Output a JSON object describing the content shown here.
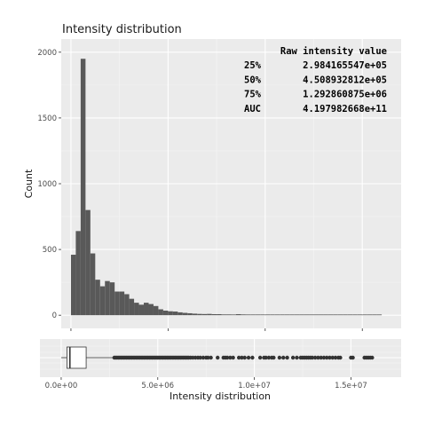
{
  "chart_data": [
    {
      "type": "bar",
      "title": "Intensity distribution",
      "xlabel": "",
      "ylabel": "Count",
      "bin_width": 250000,
      "bins_start": 0,
      "counts": [
        460,
        640,
        1950,
        800,
        470,
        270,
        220,
        260,
        250,
        180,
        180,
        160,
        125,
        95,
        80,
        95,
        85,
        70,
        45,
        35,
        30,
        28,
        22,
        18,
        15,
        12,
        10,
        9,
        10,
        8,
        8,
        6,
        6,
        5,
        8,
        6,
        4,
        3,
        3,
        4,
        3,
        2,
        3,
        2,
        2,
        2,
        2,
        2,
        1,
        1,
        2,
        1,
        1,
        2,
        1,
        1,
        1,
        1,
        2,
        1,
        1,
        1,
        1,
        1
      ],
      "xlim": [
        -500000,
        17000000
      ],
      "ylim": [
        -100,
        2100
      ],
      "yticks": [
        0,
        500,
        1000,
        1500,
        2000
      ],
      "yticklabels": [
        "0",
        "500",
        "1000",
        "1500",
        "2000"
      ],
      "xticks": [
        0,
        5000000,
        10000000,
        15000000
      ],
      "grid": true,
      "annotation": {
        "header": "Raw intensity value",
        "rows": [
          {
            "label": "25%",
            "value": "2.984165547e+05"
          },
          {
            "label": "50%",
            "value": "4.508932812e+05"
          },
          {
            "label": "75%",
            "value": "1.292860875e+06"
          },
          {
            "label": "AUC",
            "value": "4.197982668e+11"
          }
        ]
      }
    },
    {
      "type": "box",
      "xlabel": "Intensity distribution",
      "xticks": [
        0,
        5000000,
        10000000,
        15000000
      ],
      "xticklabels": [
        "0.0e+00",
        "5.0e+06",
        "1.0e+07",
        "1.5e+07"
      ],
      "min": 0,
      "q1": 298416.5547,
      "median": 450893.2812,
      "q3": 1292860.875,
      "whisker_high": 2750000,
      "outliers": [
        2750000,
        2820000,
        2890000,
        2960000,
        3030000,
        3100000,
        3170000,
        3240000,
        3310000,
        3380000,
        3450000,
        3520000,
        3590000,
        3660000,
        3730000,
        3800000,
        3870000,
        3940000,
        4010000,
        4080000,
        4150000,
        4220000,
        4290000,
        4360000,
        4430000,
        4500000,
        4570000,
        4640000,
        4710000,
        4780000,
        4850000,
        4920000,
        4990000,
        5060000,
        5130000,
        5200000,
        5270000,
        5340000,
        5410000,
        5480000,
        5550000,
        5620000,
        5690000,
        5760000,
        5830000,
        5900000,
        5970000,
        6040000,
        6110000,
        6180000,
        6250000,
        6320000,
        6390000,
        6460000,
        6530000,
        6600000,
        6700000,
        6820000,
        6950000,
        7080000,
        7200000,
        7350000,
        7500000,
        7600000,
        7750000,
        8100000,
        8400000,
        8500000,
        8600000,
        8750000,
        8900000,
        9200000,
        9350000,
        9500000,
        9700000,
        9900000,
        10300000,
        10500000,
        10600000,
        10750000,
        10900000,
        11000000,
        11300000,
        11500000,
        11700000,
        12000000,
        12200000,
        12400000,
        12500000,
        12600000,
        12700000,
        12800000,
        12900000,
        13000000,
        13150000,
        13300000,
        13450000,
        13600000,
        13750000,
        13900000,
        14050000,
        14200000,
        14350000,
        14450000,
        15000000,
        15100000,
        15700000,
        15800000,
        15900000,
        16000000,
        16100000
      ]
    }
  ]
}
